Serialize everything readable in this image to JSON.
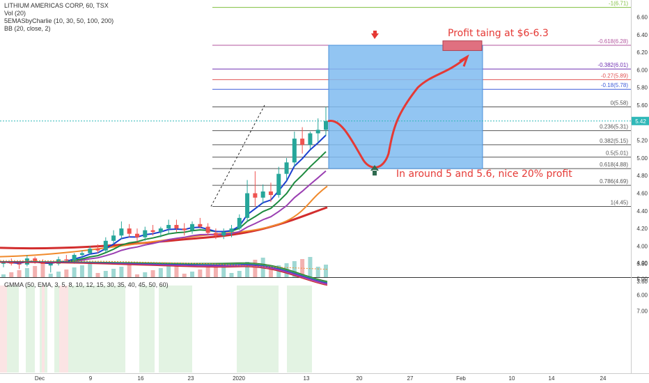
{
  "chart_data": {
    "type": "candlestick",
    "main_pane": {
      "legend": [
        "LITHIUM AMERICAS CORP, 60, TSX",
        "Vol (20)",
        "5EMASbyCharlie (10, 30, 50, 100, 200)",
        "BB (20, close, 2)"
      ],
      "ylim": [
        3.6,
        6.75
      ],
      "y_ticks": [
        "6.60",
        "6.40",
        "6.20",
        "6.00",
        "5.80",
        "5.60",
        "5.40",
        "5.20",
        "5.00",
        "4.80",
        "4.60",
        "4.40",
        "4.20",
        "4.00",
        "3.80",
        "3.60"
      ],
      "last_price": "5.42",
      "fib_levels": [
        {
          "label": "-1(6.71)",
          "value": 6.71,
          "color": "#7fbf3f"
        },
        {
          "label": "-0.618(6.28)",
          "value": 6.28,
          "color": "#b2559e"
        },
        {
          "label": "-0.382(6.01)",
          "value": 6.01,
          "color": "#6c2bb0"
        },
        {
          "label": "-0.27(5.89)",
          "value": 5.89,
          "color": "#e05050"
        },
        {
          "label": "-0.18(5.78)",
          "value": 5.78,
          "color": "#3d5bd9"
        },
        {
          "label": "0(5.58)",
          "value": 5.58,
          "color": "#555555"
        },
        {
          "label": "0.236(5.31)",
          "value": 5.31,
          "color": "#555555"
        },
        {
          "label": "0.382(5.15)",
          "value": 5.15,
          "color": "#555555"
        },
        {
          "label": "0.5(5.01)",
          "value": 5.01,
          "color": "#555555"
        },
        {
          "label": "0.618(4.88)",
          "value": 4.88,
          "color": "#555555"
        },
        {
          "label": "0.786(4.69)",
          "value": 4.69,
          "color": "#555555"
        },
        {
          "label": "1(4.45)",
          "value": 4.45,
          "color": "#555555"
        }
      ],
      "annotations": {
        "profit_text": "Profit taing at $6-6.3",
        "target_text": "In around 5 and 5.6, nice 20% profit"
      },
      "price_path": [
        [
          3.8,
          3.84,
          3.76,
          3.82
        ],
        [
          3.82,
          3.86,
          3.78,
          3.8
        ],
        [
          3.8,
          3.83,
          3.74,
          3.79
        ],
        [
          3.79,
          3.9,
          3.77,
          3.86
        ],
        [
          3.86,
          3.88,
          3.8,
          3.82
        ],
        [
          3.82,
          3.85,
          3.76,
          3.78
        ],
        [
          3.78,
          3.82,
          3.7,
          3.8
        ],
        [
          3.8,
          3.88,
          3.78,
          3.85
        ],
        [
          3.85,
          3.9,
          3.82,
          3.84
        ],
        [
          3.84,
          3.92,
          3.8,
          3.9
        ],
        [
          3.9,
          3.95,
          3.86,
          3.92
        ],
        [
          3.92,
          4.0,
          3.9,
          3.97
        ],
        [
          3.97,
          4.02,
          3.92,
          3.95
        ],
        [
          3.95,
          4.1,
          3.93,
          4.06
        ],
        [
          4.06,
          4.18,
          4.02,
          4.12
        ],
        [
          4.12,
          4.28,
          4.08,
          4.2
        ],
        [
          4.2,
          4.25,
          4.1,
          4.14
        ],
        [
          4.14,
          4.2,
          4.05,
          4.1
        ],
        [
          4.1,
          4.22,
          4.06,
          4.18
        ],
        [
          4.18,
          4.24,
          4.12,
          4.16
        ],
        [
          4.16,
          4.22,
          4.1,
          4.2
        ],
        [
          4.2,
          4.3,
          4.14,
          4.24
        ],
        [
          4.24,
          4.3,
          4.16,
          4.2
        ],
        [
          4.2,
          4.26,
          4.12,
          4.18
        ],
        [
          4.18,
          4.28,
          4.14,
          4.25
        ],
        [
          4.25,
          4.32,
          4.2,
          4.22
        ],
        [
          4.22,
          4.26,
          4.12,
          4.15
        ],
        [
          4.15,
          4.2,
          4.08,
          4.12
        ],
        [
          4.12,
          4.2,
          4.08,
          4.16
        ],
        [
          4.16,
          4.24,
          4.1,
          4.2
        ],
        [
          4.2,
          4.36,
          4.18,
          4.32
        ],
        [
          4.32,
          4.75,
          4.28,
          4.6
        ],
        [
          4.6,
          4.85,
          4.45,
          4.55
        ],
        [
          4.55,
          4.7,
          4.48,
          4.62
        ],
        [
          4.62,
          4.72,
          4.5,
          4.58
        ],
        [
          4.58,
          4.9,
          4.55,
          4.82
        ],
        [
          4.82,
          5.0,
          4.75,
          4.95
        ],
        [
          4.95,
          5.3,
          4.9,
          5.22
        ],
        [
          5.22,
          5.35,
          5.05,
          5.15
        ],
        [
          5.15,
          5.3,
          5.1,
          5.28
        ],
        [
          5.28,
          5.45,
          5.18,
          5.32
        ],
        [
          5.32,
          5.58,
          5.25,
          5.42
        ]
      ],
      "trade_box": {
        "x_start_label": "14 Jan",
        "x_end_label": "3 Feb",
        "y_low": 4.88,
        "y_high": 6.28
      },
      "profit_zone": {
        "y_low": 6.22,
        "y_high": 6.33
      }
    },
    "lower_pane": {
      "title": "GMMA (50, EMA, 3, 5, 8, 10, 12, 15, 30, 35, 40, 45, 50, 60)",
      "ylim": [
        3.8,
        7.2
      ],
      "y_ticks": [
        "7.00",
        "6.00",
        "5.00",
        "4.00"
      ]
    },
    "x_ticks": [
      "Dec",
      "9",
      "16",
      "23",
      "2020",
      "13",
      "20",
      "27",
      "Feb",
      "10",
      "14",
      "24"
    ]
  }
}
